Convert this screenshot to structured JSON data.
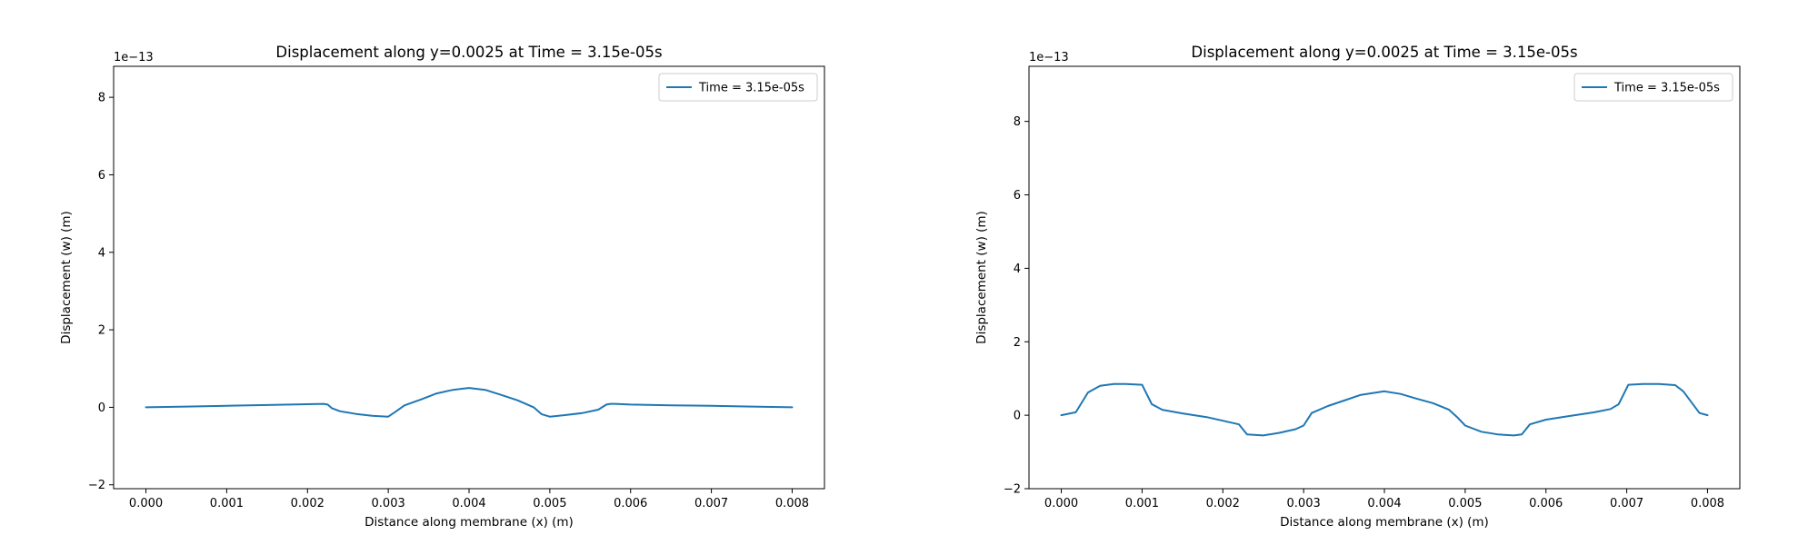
{
  "chart_data": [
    {
      "type": "line",
      "title": "Displacement along y=0.0025 at Time = 3.15e-05s",
      "xlabel": "Distance along membrane (x) (m)",
      "ylabel": "Displacement (w) (m)",
      "y_offset_text": "1e−13",
      "xlim": [
        -0.0004,
        0.0084
      ],
      "ylim": [
        -2.1,
        8.8
      ],
      "x_ticks": [
        0.0,
        0.001,
        0.002,
        0.003,
        0.004,
        0.005,
        0.006,
        0.007,
        0.008
      ],
      "x_tick_labels": [
        "0.000",
        "0.001",
        "0.002",
        "0.003",
        "0.004",
        "0.005",
        "0.006",
        "0.007",
        "0.008"
      ],
      "y_ticks": [
        -2,
        0,
        2,
        4,
        6,
        8
      ],
      "y_tick_labels": [
        "−2",
        "0",
        "2",
        "4",
        "6",
        "8"
      ],
      "grid": false,
      "legend_position": "top-right",
      "series": [
        {
          "name": "Time = 3.15e-05s",
          "color": "#1f77b4",
          "x": [
            0.0,
            0.0005,
            0.001,
            0.0015,
            0.002,
            0.0022,
            0.00225,
            0.0023,
            0.0024,
            0.0026,
            0.0028,
            0.003,
            0.0031,
            0.0032,
            0.0034,
            0.0036,
            0.0038,
            0.004,
            0.0042,
            0.0044,
            0.0046,
            0.0048,
            0.0049,
            0.005,
            0.0052,
            0.0054,
            0.0056,
            0.0057,
            0.00575,
            0.0058,
            0.006,
            0.0065,
            0.007,
            0.0075,
            0.008
          ],
          "y": [
            0.0,
            0.02,
            0.04,
            0.06,
            0.08,
            0.09,
            0.07,
            -0.02,
            -0.1,
            -0.17,
            -0.22,
            -0.24,
            -0.1,
            0.05,
            0.2,
            0.36,
            0.45,
            0.5,
            0.45,
            0.32,
            0.18,
            0.0,
            -0.18,
            -0.24,
            -0.2,
            -0.15,
            -0.06,
            0.07,
            0.09,
            0.09,
            0.07,
            0.05,
            0.04,
            0.02,
            0.0
          ]
        }
      ]
    },
    {
      "type": "line",
      "title": "Displacement along y=0.0025 at Time = 3.15e-05s",
      "xlabel": "Distance along membrane (x) (m)",
      "ylabel": "Displacement (w) (m)",
      "y_offset_text": "1e−13",
      "xlim": [
        -0.0004,
        0.0084
      ],
      "ylim": [
        -2.0,
        9.5
      ],
      "x_ticks": [
        0.0,
        0.001,
        0.002,
        0.003,
        0.004,
        0.005,
        0.006,
        0.007,
        0.008
      ],
      "x_tick_labels": [
        "0.000",
        "0.001",
        "0.002",
        "0.003",
        "0.004",
        "0.005",
        "0.006",
        "0.007",
        "0.008"
      ],
      "y_ticks": [
        -2,
        0,
        2,
        4,
        6,
        8
      ],
      "y_tick_labels": [
        "−2",
        "0",
        "2",
        "4",
        "6",
        "8"
      ],
      "grid": false,
      "legend_position": "top-right",
      "series": [
        {
          "name": "Time = 3.15e-05s",
          "color": "#1f77b4",
          "x": [
            0.0,
            0.00018,
            0.00033,
            0.00048,
            0.00065,
            0.0008,
            0.001,
            0.00112,
            0.00125,
            0.0015,
            0.0018,
            0.002,
            0.0022,
            0.0023,
            0.0025,
            0.0027,
            0.0029,
            0.003,
            0.0031,
            0.0033,
            0.0035,
            0.0037,
            0.0039,
            0.004,
            0.0042,
            0.0044,
            0.0046,
            0.0048,
            0.0049,
            0.005,
            0.0052,
            0.0054,
            0.0056,
            0.0057,
            0.0058,
            0.006,
            0.0063,
            0.0066,
            0.0068,
            0.0069,
            0.00702,
            0.0072,
            0.0074,
            0.0076,
            0.0077,
            0.0079,
            0.008
          ],
          "y": [
            0.0,
            0.08,
            0.62,
            0.8,
            0.85,
            0.85,
            0.83,
            0.3,
            0.15,
            0.05,
            -0.05,
            -0.15,
            -0.25,
            -0.52,
            -0.55,
            -0.48,
            -0.38,
            -0.28,
            0.06,
            0.25,
            0.4,
            0.55,
            0.62,
            0.65,
            0.58,
            0.45,
            0.33,
            0.15,
            -0.05,
            -0.28,
            -0.45,
            -0.52,
            -0.55,
            -0.52,
            -0.25,
            -0.12,
            -0.02,
            0.08,
            0.17,
            0.3,
            0.83,
            0.85,
            0.85,
            0.82,
            0.65,
            0.06,
            0.0
          ]
        }
      ]
    }
  ]
}
